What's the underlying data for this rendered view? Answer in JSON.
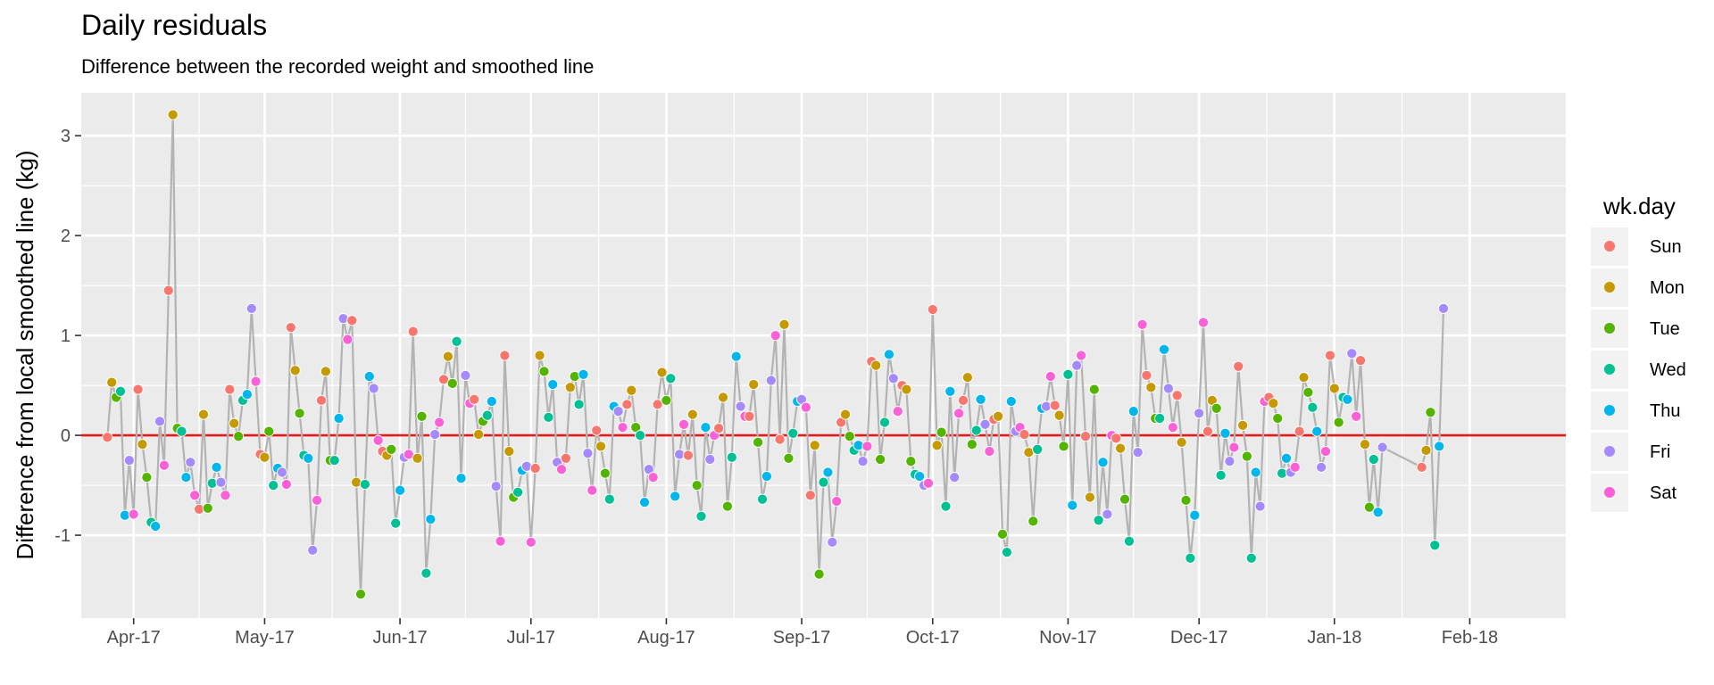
{
  "chart_data": {
    "type": "line",
    "title": "Daily residuals",
    "subtitle": "Difference between the recorded weight and smoothed line",
    "xlabel": "",
    "ylabel": "Difference from local smoothed line (kg)",
    "xlim": [
      "2017-03-20",
      "2018-02-23"
    ],
    "ylim": [
      -1.83,
      3.43
    ],
    "x_ticks": [
      {
        "date": "2017-04-01",
        "label": "Apr-17"
      },
      {
        "date": "2017-05-01",
        "label": "May-17"
      },
      {
        "date": "2017-06-01",
        "label": "Jun-17"
      },
      {
        "date": "2017-07-01",
        "label": "Jul-17"
      },
      {
        "date": "2017-08-01",
        "label": "Aug-17"
      },
      {
        "date": "2017-09-01",
        "label": "Sep-17"
      },
      {
        "date": "2017-10-01",
        "label": "Oct-17"
      },
      {
        "date": "2017-11-01",
        "label": "Nov-17"
      },
      {
        "date": "2017-12-01",
        "label": "Dec-17"
      },
      {
        "date": "2018-01-01",
        "label": "Jan-18"
      },
      {
        "date": "2018-02-01",
        "label": "Feb-18"
      }
    ],
    "y_ticks": [
      -1,
      0,
      1,
      2,
      3
    ],
    "grid": true,
    "reference_line": {
      "y": 0,
      "color": "#e41a1c"
    },
    "line_color": "#b3b3b3",
    "legend": {
      "title": "wk.day",
      "placement": "right",
      "items": [
        {
          "label": "Sun",
          "color": "#f8766d"
        },
        {
          "label": "Mon",
          "color": "#c49a00"
        },
        {
          "label": "Tue",
          "color": "#53b400"
        },
        {
          "label": "Wed",
          "color": "#00c094"
        },
        {
          "label": "Thu",
          "color": "#00b6eb"
        },
        {
          "label": "Fri",
          "color": "#a58aff"
        },
        {
          "label": "Sat",
          "color": "#fb61d7"
        }
      ]
    },
    "start_date": "2017-03-26",
    "values": [
      -0.02,
      0.53,
      0.38,
      0.44,
      -0.8,
      -0.25,
      -0.79,
      0.46,
      -0.09,
      -0.42,
      -0.87,
      -0.91,
      0.14,
      -0.3,
      1.45,
      3.21,
      0.07,
      0.04,
      -0.42,
      -0.27,
      -0.6,
      -0.74,
      0.21,
      -0.73,
      -0.48,
      -0.32,
      -0.47,
      -0.6,
      0.46,
      0.12,
      -0.01,
      0.35,
      0.41,
      1.27,
      0.54,
      -0.19,
      -0.22,
      0.04,
      -0.5,
      -0.33,
      -0.37,
      -0.49,
      1.08,
      0.65,
      0.22,
      -0.2,
      -0.23,
      -1.15,
      -0.65,
      0.35,
      0.64,
      -0.25,
      -0.25,
      0.17,
      1.17,
      0.96,
      1.15,
      -0.47,
      -1.59,
      -0.49,
      0.59,
      0.47,
      -0.05,
      -0.16,
      -0.2,
      -0.14,
      -0.88,
      -0.55,
      -0.22,
      -0.19,
      1.04,
      -0.23,
      0.19,
      -1.38,
      -0.84,
      0.01,
      0.13,
      0.56,
      0.79,
      0.52,
      0.94,
      -0.43,
      0.6,
      0.32,
      0.36,
      0.01,
      0.14,
      0.2,
      0.34,
      -0.51,
      -1.06,
      0.8,
      -0.16,
      -0.62,
      -0.57,
      -0.35,
      -0.31,
      -1.07,
      -0.33,
      0.8,
      0.64,
      0.18,
      0.51,
      -0.27,
      -0.34,
      -0.23,
      0.48,
      0.59,
      0.31,
      0.61,
      -0.18,
      -0.55,
      0.05,
      -0.11,
      -0.38,
      -0.64,
      0.29,
      0.24,
      0.08,
      0.31,
      0.45,
      0.08,
      0.0,
      -0.67,
      -0.34,
      -0.42,
      0.31,
      0.63,
      0.35,
      0.57,
      -0.61,
      -0.19,
      0.11,
      -0.2,
      0.21,
      -0.5,
      -0.81,
      0.08,
      -0.24,
      0.0,
      0.07,
      0.38,
      -0.71,
      -0.22,
      0.79,
      0.29,
      0.19,
      0.19,
      0.51,
      -0.07,
      -0.64,
      -0.41,
      0.55,
      1.0,
      -0.04,
      1.11,
      -0.23,
      0.02,
      0.34,
      0.36,
      0.28,
      -0.6,
      -0.1,
      -1.39,
      -0.47,
      -0.37,
      -1.07,
      -0.66,
      0.13,
      0.21,
      -0.01,
      -0.15,
      -0.1,
      -0.26,
      -0.11,
      0.74,
      0.7,
      -0.24,
      0.13,
      0.81,
      0.57,
      0.24,
      0.5,
      0.46,
      -0.26,
      -0.39,
      -0.41,
      -0.5,
      -0.48,
      1.26,
      -0.1,
      0.03,
      -0.71,
      0.44,
      -0.42,
      0.22,
      0.35,
      0.58,
      -0.09,
      0.05,
      0.36,
      0.11,
      -0.16,
      0.16,
      0.19,
      -0.99,
      -1.17,
      0.34,
      0.04,
      0.08,
      0.01,
      -0.17,
      -0.86,
      -0.14,
      0.27,
      0.29,
      0.59,
      0.3,
      0.2,
      -0.11,
      0.61,
      -0.7,
      0.7,
      0.8,
      -0.01,
      -0.62,
      0.46,
      -0.85,
      -0.27,
      -0.79,
      0.0,
      -0.03,
      -0.13,
      -0.64,
      -1.06,
      0.24,
      -0.17,
      1.11,
      0.6,
      0.48,
      0.17,
      0.17,
      0.86,
      0.47,
      0.08,
      0.4,
      -0.07,
      -0.65,
      -1.23,
      -0.8,
      0.22,
      1.13,
      0.04,
      0.35,
      0.27,
      -0.4,
      0.02,
      -0.26,
      -0.12,
      0.69,
      0.1,
      -0.21,
      -1.23,
      -0.37,
      -0.71,
      0.34,
      0.38,
      0.32,
      0.17,
      -0.38,
      -0.23,
      -0.37,
      -0.32,
      0.04,
      0.58,
      0.43,
      0.28,
      0.04,
      -0.32,
      -0.16,
      0.8,
      0.47,
      0.13,
      0.38,
      0.36,
      0.82,
      0.19,
      0.75,
      -0.09,
      -0.72,
      -0.24,
      -0.77,
      -0.12,
      null,
      null,
      null,
      null,
      null,
      null,
      null,
      null,
      -0.32,
      -0.15,
      0.23,
      -1.1,
      -0.11,
      1.27
    ]
  }
}
